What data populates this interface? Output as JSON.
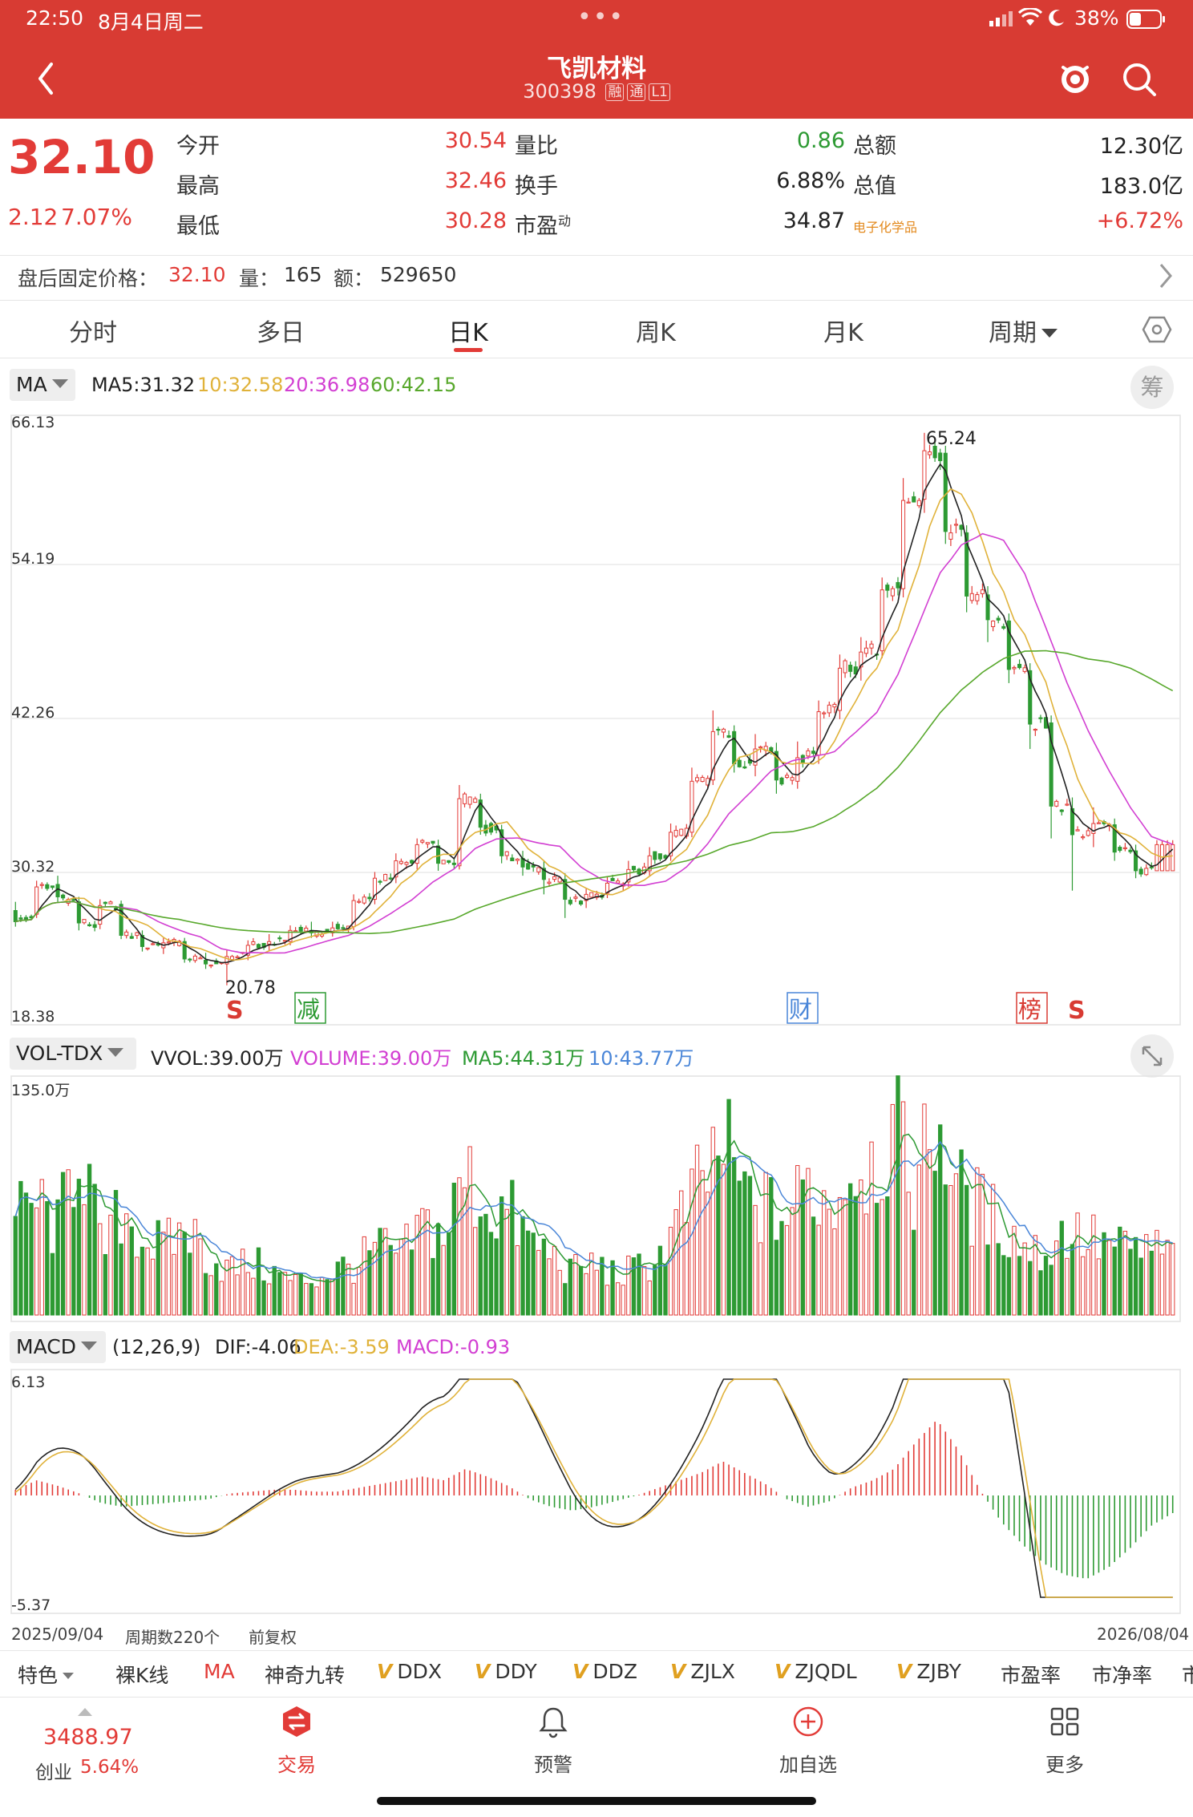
{
  "status": {
    "time": "22:50",
    "date": "8月4日周二",
    "battery": "38%"
  },
  "header": {
    "name": "飞凯材料",
    "code": "300398",
    "tags": [
      "融",
      "通",
      "L1"
    ]
  },
  "quote": {
    "price": "32.10",
    "change": "2.12",
    "change_pct": "7.07%",
    "rows": [
      {
        "l1": "今开",
        "v1": "30.54",
        "l2": "量比",
        "v2": "0.86",
        "l3": "总额",
        "v3": "12.30亿"
      },
      {
        "l1": "最高",
        "v1": "32.46",
        "l2": "换手",
        "v2": "6.88%",
        "l3": "总值",
        "v3": "183.0亿"
      },
      {
        "l1": "最低",
        "v1": "30.28",
        "l2": "市盈",
        "l2_sup": "动",
        "v2": "34.87",
        "l3": "电子化学品",
        "v3": "+6.72%"
      }
    ]
  },
  "after_hours": {
    "label": "盘后固定价格：",
    "price": "32.10",
    "vol_label": "量：",
    "vol": "165",
    "amt_label": "额：",
    "amt": "529650"
  },
  "tabs": [
    "分时",
    "多日",
    "日K",
    "周K",
    "月K",
    "周期"
  ],
  "active_tab": "日K",
  "ma_bar": {
    "btn": "MA",
    "ma5": "MA5:31.32",
    "ma10": "10:32.58",
    "ma20": "20:36.98",
    "ma60": "60:42.15",
    "chip_btn": "筹"
  },
  "price_axis": [
    "66.13",
    "54.19",
    "42.26",
    "30.32",
    "18.38"
  ],
  "price_ann": {
    "high": "65.24",
    "low": "20.78"
  },
  "markers": [
    "S",
    "减",
    "财",
    "榜",
    "S"
  ],
  "vol_bar": {
    "btn": "VOL-TDX",
    "vvol": "VVOL:39.00万",
    "volume": "VOLUME:39.00万",
    "ma5": "MA5:44.31万",
    "ma10": "10:43.77万",
    "axis_top": "135.0万"
  },
  "macd_bar": {
    "btn": "MACD",
    "params": "(12,26,9)",
    "dif": "DIF:-4.06",
    "dea": "DEA:-3.59",
    "macd": "MACD:-0.93",
    "axis_top": "6.13",
    "axis_bottom": "-5.37"
  },
  "footer_axis": {
    "start": "2025/09/04",
    "count": "周期数220个",
    "adj": "前复权",
    "end": "2026/08/04"
  },
  "indicator_strip": {
    "first": "特色",
    "items": [
      "裸K线",
      "MA",
      "神奇九转"
    ],
    "v_items": [
      "DDX",
      "DDY",
      "DDZ",
      "ZJLX",
      "ZJQDL",
      "ZJBY"
    ],
    "tail": [
      "市盈率",
      "市净率",
      "市"
    ]
  },
  "bottom_nav": {
    "index_value": "3488.97",
    "index_label": "创业",
    "index_pct": "5.64%",
    "items": [
      "交易",
      "预警",
      "加自选",
      "更多"
    ]
  },
  "colors": {
    "brand_red": "#d83b33",
    "up": "#e23b37",
    "down": "#2d9a33",
    "ma5": "#222222",
    "ma10": "#e0b23a",
    "ma20": "#d23fd2",
    "ma60": "#58a82c",
    "dea": "#e0b23a",
    "blue": "#4a86d8"
  },
  "chart_data": [
    {
      "type": "candlestick",
      "x_range": [
        "2025/09/04",
        "2026/08/04"
      ],
      "ylim": [
        18.38,
        66.13
      ],
      "ohlc_anchors": [
        [
          26.8,
          25.9,
          27.5,
          25.5
        ],
        [
          26.5,
          28.7,
          29.2,
          26.2
        ],
        [
          28.9,
          27.9,
          29.6,
          27.5
        ],
        [
          27.5,
          25.8,
          27.9,
          25.2
        ],
        [
          25.7,
          27.2,
          27.7,
          25.3
        ],
        [
          27.3,
          24.8,
          27.6,
          24.5
        ],
        [
          24.8,
          23.9,
          25.2,
          23.5
        ],
        [
          23.8,
          24.2,
          24.6,
          23.3
        ],
        [
          24.3,
          22.9,
          24.6,
          22.6
        ],
        [
          22.8,
          22.5,
          23.4,
          22.1
        ],
        [
          22.5,
          23.1,
          23.6,
          20.78
        ],
        [
          23.2,
          24.0,
          24.4,
          22.8
        ],
        [
          24.1,
          24.3,
          24.9,
          23.6
        ],
        [
          24.3,
          25.2,
          25.6,
          24.0
        ],
        [
          25.2,
          25.0,
          25.9,
          24.6
        ],
        [
          25.0,
          25.4,
          25.9,
          24.7
        ],
        [
          25.5,
          27.6,
          28.1,
          25.2
        ],
        [
          27.7,
          29.4,
          29.9,
          27.3
        ],
        [
          29.5,
          30.8,
          31.4,
          29.0
        ],
        [
          30.6,
          32.1,
          32.6,
          30.1
        ],
        [
          32.0,
          30.6,
          32.5,
          30.0
        ],
        [
          30.4,
          35.8,
          36.9,
          30.1
        ],
        [
          35.7,
          33.5,
          36.2,
          32.9
        ],
        [
          33.3,
          31.2,
          33.7,
          30.6
        ],
        [
          31.0,
          30.3,
          31.6,
          29.6
        ],
        [
          30.2,
          29.3,
          30.8,
          28.1
        ],
        [
          29.3,
          27.7,
          29.8,
          26.2
        ],
        [
          27.6,
          28.1,
          28.6,
          27.0
        ],
        [
          28.2,
          29.0,
          29.5,
          27.8
        ],
        [
          29.1,
          30.1,
          30.8,
          28.7
        ],
        [
          30.0,
          31.2,
          31.9,
          29.6
        ],
        [
          31.2,
          33.1,
          33.8,
          30.8
        ],
        [
          33.1,
          37.2,
          38.3,
          32.7
        ],
        [
          37.3,
          41.2,
          42.9,
          36.9
        ],
        [
          41.2,
          38.6,
          41.7,
          37.9
        ],
        [
          38.5,
          39.8,
          41.0,
          37.6
        ],
        [
          39.6,
          37.3,
          40.3,
          36.2
        ],
        [
          37.2,
          39.1,
          40.4,
          36.6
        ],
        [
          39.3,
          42.8,
          43.7,
          38.6
        ],
        [
          42.9,
          46.3,
          47.4,
          42.2
        ],
        [
          46.4,
          47.6,
          48.8,
          45.3
        ],
        [
          47.7,
          52.6,
          53.6,
          47.1
        ],
        [
          52.7,
          59.8,
          61.6,
          52.0
        ],
        [
          59.9,
          63.8,
          65.24,
          58.8
        ],
        [
          63.6,
          57.3,
          64.2,
          56.3
        ],
        [
          57.2,
          52.1,
          57.8,
          50.8
        ],
        [
          52.2,
          50.2,
          52.9,
          48.4
        ],
        [
          50.1,
          46.2,
          50.7,
          45.1
        ],
        [
          46.1,
          41.8,
          46.7,
          39.8
        ],
        [
          41.9,
          35.2,
          42.5,
          32.6
        ],
        [
          35.0,
          32.9,
          35.9,
          28.4
        ],
        [
          33.0,
          33.8,
          35.1,
          31.9
        ],
        [
          33.7,
          31.5,
          34.2,
          30.8
        ],
        [
          31.6,
          30.0,
          32.1,
          29.4
        ],
        [
          30.0,
          32.1,
          32.46,
          30.28
        ]
      ],
      "ma": {
        "ma5": 31.32,
        "ma10": 32.58,
        "ma20": 36.98,
        "ma60": 42.15
      },
      "annotations": [
        "65.24",
        "20.78"
      ]
    },
    {
      "type": "bar",
      "name": "VOL-TDX",
      "ylim": [
        0,
        1350000
      ],
      "values_wan": [
        62,
        75,
        55,
        122,
        40,
        70,
        50,
        44,
        58,
        38,
        30,
        34,
        28,
        22,
        24,
        30,
        34,
        45,
        38,
        60,
        52,
        92,
        70,
        68,
        48,
        40,
        28,
        34,
        26,
        30,
        38,
        62,
        86,
        112,
        78,
        70,
        64,
        88,
        72,
        98,
        103,
        118,
        86,
        132,
        82,
        70,
        60,
        46,
        40,
        56,
        50,
        46,
        42,
        44,
        39
      ]
    },
    {
      "type": "bar",
      "name": "MACD",
      "ylim": [
        -5.37,
        6.13
      ],
      "hist": [
        0.3,
        0.8,
        0.5,
        0.1,
        -0.4,
        -0.6,
        -0.5,
        -0.4,
        -0.3,
        -0.2,
        0.1,
        0.2,
        0.3,
        0.3,
        0.2,
        0.2,
        0.4,
        0.6,
        0.8,
        1.0,
        0.8,
        1.4,
        1.0,
        0.5,
        -0.2,
        -0.6,
        -0.8,
        -0.6,
        -0.3,
        0.0,
        0.4,
        0.8,
        1.2,
        1.8,
        1.2,
        0.6,
        -0.2,
        -0.6,
        -0.3,
        0.4,
        0.8,
        1.4,
        2.8,
        4.0,
        2.4,
        0.3,
        -1.4,
        -2.6,
        -3.6,
        -4.2,
        -4.4,
        -3.8,
        -2.8,
        -1.6,
        -0.93
      ],
      "dif_end": -4.06,
      "dea_end": -3.59
    }
  ]
}
